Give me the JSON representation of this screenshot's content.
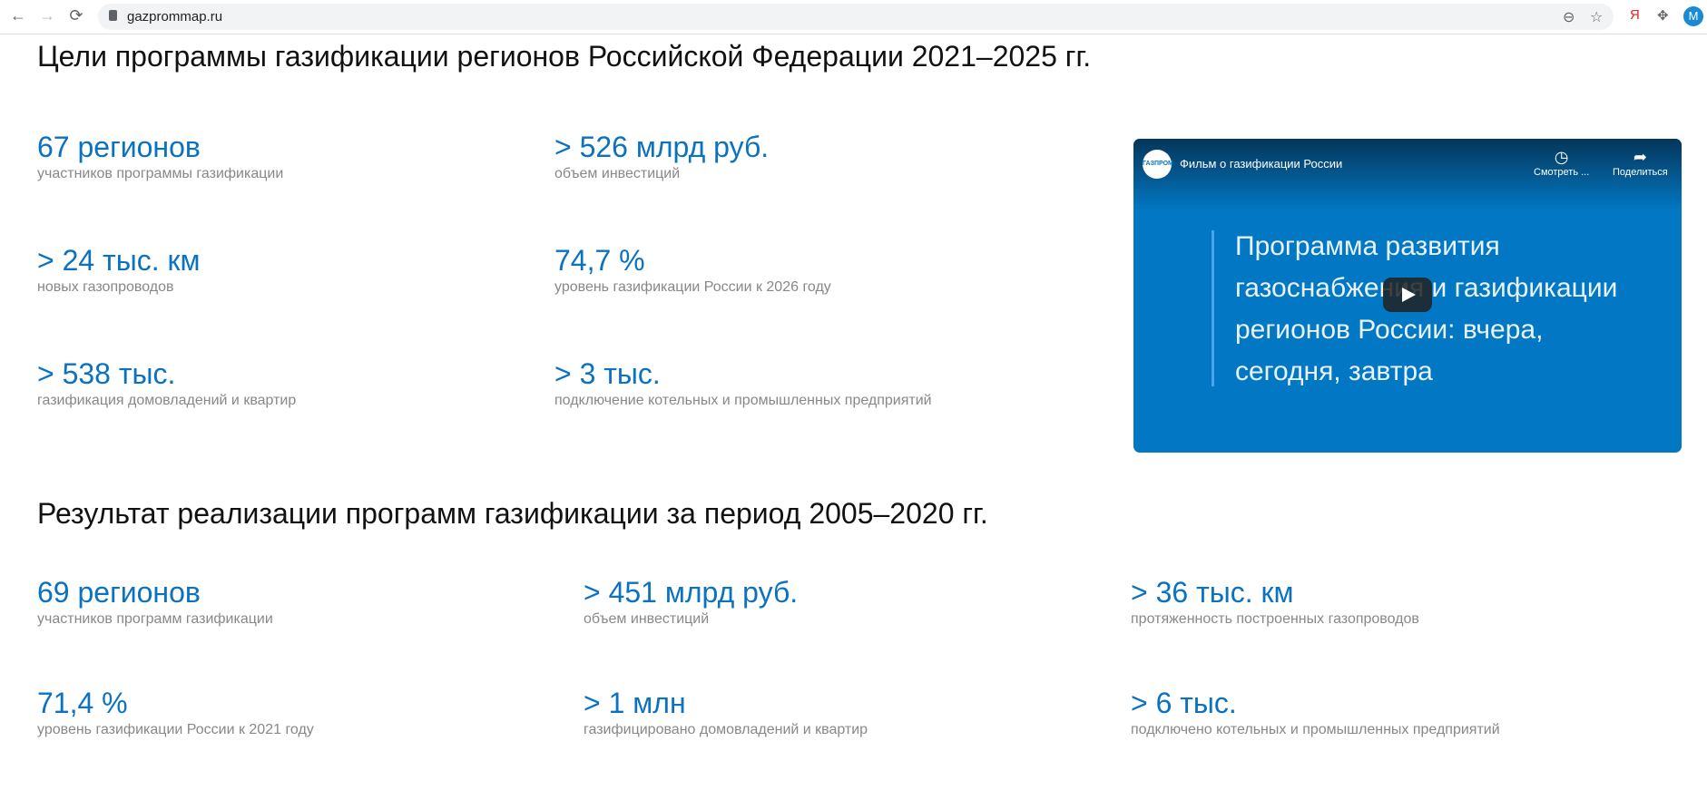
{
  "browser": {
    "url": "gazprommap.ru",
    "ext_yandex": "Я",
    "avatar": "M"
  },
  "section1": {
    "title": "Цели программы газификации регионов Российской Федерации 2021–2025 гг.",
    "stats": [
      {
        "value": "67 регионов",
        "desc": "участников программы газификации"
      },
      {
        "value": "> 526 млрд руб.",
        "desc": "объем инвестиций"
      },
      {
        "value": "> 24 тыс. км",
        "desc": "новых газопроводов"
      },
      {
        "value": "74,7 %",
        "desc": "уровень газификации России к 2026 году"
      },
      {
        "value": "> 538 тыс.",
        "desc": "газификация домовладений и квартир"
      },
      {
        "value": "> 3 тыс.",
        "desc": "подключение котельных и промышленных предприятий"
      }
    ]
  },
  "video": {
    "title": "Фильм о газификации России",
    "watch_later": "Смотреть ...",
    "share": "Поделиться",
    "slide_text": "Программа развития газоснабжения и газификации регионов России: вчера, сегодня, завтра",
    "logo_text": "ГАЗПРОМ"
  },
  "section2": {
    "title": "Результат реализации программ газификации за период 2005–2020 гг.",
    "stats": [
      {
        "value": "69 регионов",
        "desc": "участников программ газификации"
      },
      {
        "value": "> 451 млрд руб.",
        "desc": "объем инвестиций"
      },
      {
        "value": "> 36 тыс. км",
        "desc": "протяженность построенных газопроводов"
      },
      {
        "value": "71,4 %",
        "desc": "уровень газификации России к 2021 году"
      },
      {
        "value": "> 1 млн",
        "desc": "газифицировано домовладений и квартир"
      },
      {
        "value": "> 6 тыс.",
        "desc": "подключено котельных и промышленных предприятий"
      }
    ]
  }
}
